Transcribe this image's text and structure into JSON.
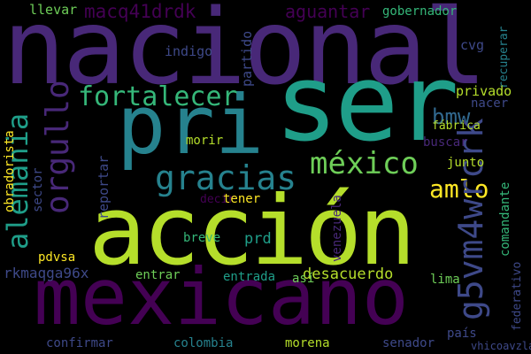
{
  "palette": {
    "background": "#000000",
    "dark_purple": "#440154",
    "purple": "#482878",
    "indigo": "#3e4989",
    "blue": "#31688e",
    "teal": "#26828e",
    "green_teal": "#1f9e89",
    "green": "#35b779",
    "light_green": "#6ece58",
    "lime": "#b5de2b",
    "yellow": "#fde725"
  },
  "words": {
    "nacional": "nacional",
    "ser": "ser",
    "pri": "pri",
    "accion": "acción",
    "mexicano": "mexicano",
    "alemania": "alemania",
    "orgullo": "orgullo",
    "fortalecer": "fortalecer",
    "gracias": "gracias",
    "mexico": "méxico",
    "amlo": "amlo",
    "bmw": "bmw",
    "g5vm4wrcrk": "g5vm4wrcrk",
    "macq41drdk": "macq41drdk",
    "aguantar": "aguantar",
    "indigo": "indigo",
    "partido": "partido",
    "gobernador": "gobernador",
    "cvg": "cvg",
    "recuperar": "recuperar",
    "llevar": "llevar",
    "privado": "privado",
    "nacer": "nacer",
    "fabrica": "fábrica",
    "buscar": "buscar",
    "comandante": "comandante",
    "junto": "junto",
    "reportar": "reportar",
    "morir": "morir",
    "obradorista": "obradorista",
    "sector": "sector",
    "decir": "decir",
    "tener": "tener",
    "venezuela": "venezuela",
    "breve": "breve",
    "prd": "prd",
    "pdvsa": "pdvsa",
    "rkmaqga96x": "rkmaqga96x",
    "desacuerdo": "desacuerdo",
    "lima": "lima",
    "entrar": "entrar",
    "entrada": "entrada",
    "asi": "así",
    "federativo": "federativo",
    "confirmar": "confirmar",
    "colombia": "colombia",
    "morena": "morena",
    "senador": "senador",
    "pais": "país",
    "vhicoavzla": "vhicoavzla"
  }
}
